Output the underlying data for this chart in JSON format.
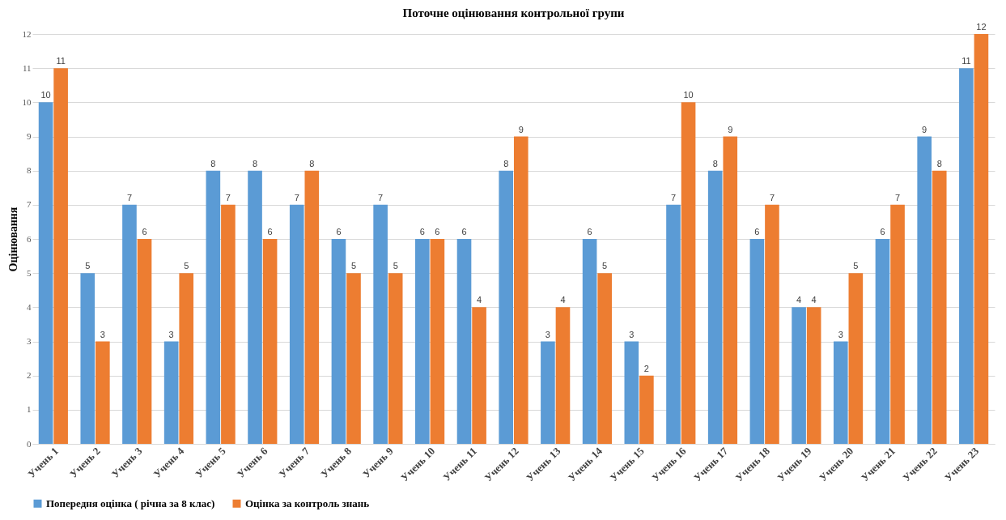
{
  "chart_data": {
    "type": "bar",
    "title": "Поточне оцінювання контрольної групи",
    "ylabel": "Оцінювання",
    "categories": [
      "Учень 1",
      "Учень 2",
      "Учень 3",
      "Учень 4",
      "Учень 5",
      "Учень 6",
      "Учень 7",
      "Учень 8",
      "Учень 9",
      "Учень 10",
      "Учень 11",
      "Учень 12",
      "Учень 13",
      "Учень 14",
      "Учень 15",
      "Учень 16",
      "Учень 17",
      "Учень 18",
      "Учень 19",
      "Учень 20",
      "Учень 21",
      "Учень 22",
      "Учень 23"
    ],
    "series": [
      {
        "name": "Попередня оцінка ( річна за 8 клас)",
        "color": "#5b9bd5",
        "values": [
          10,
          5,
          7,
          3,
          8,
          8,
          7,
          6,
          7,
          6,
          6,
          8,
          3,
          6,
          3,
          7,
          8,
          6,
          4,
          3,
          6,
          9,
          11
        ]
      },
      {
        "name": "Оцінка за контроль знань",
        "color": "#ed7d31",
        "values": [
          11,
          3,
          6,
          5,
          7,
          6,
          8,
          5,
          5,
          6,
          4,
          9,
          4,
          5,
          2,
          10,
          9,
          7,
          4,
          5,
          7,
          8,
          12
        ]
      }
    ],
    "ylim": [
      0,
      12
    ],
    "yticks": [
      0,
      1,
      2,
      3,
      4,
      5,
      6,
      7,
      8,
      9,
      10,
      11,
      12
    ],
    "grid": "y",
    "legend": "bottom",
    "data_labels": true
  }
}
